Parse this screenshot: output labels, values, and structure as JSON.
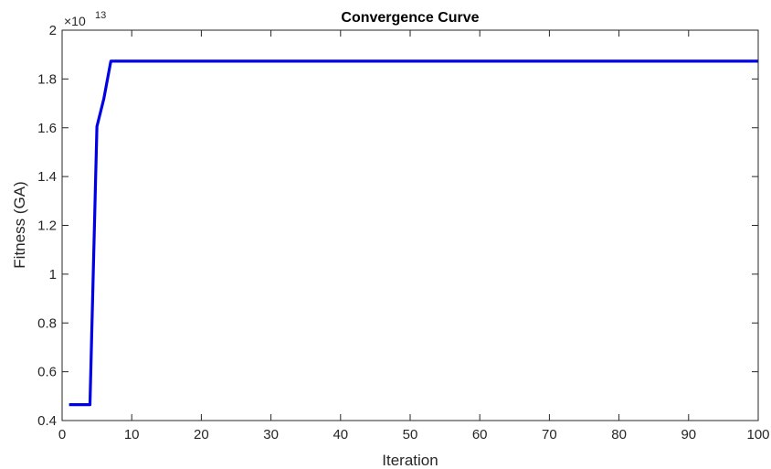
{
  "chart_data": {
    "type": "line",
    "title": "Convergence Curve",
    "xlabel": "Iteration",
    "ylabel": "Fitness (GA)",
    "y_multiplier_base": "×10",
    "y_multiplier_exponent": "13",
    "xlim": [
      0,
      100
    ],
    "ylim": [
      0.4,
      2
    ],
    "x_ticks": [
      0,
      10,
      20,
      30,
      40,
      50,
      60,
      70,
      80,
      90,
      100
    ],
    "x_tick_labels": [
      "0",
      "10",
      "20",
      "30",
      "40",
      "50",
      "60",
      "70",
      "80",
      "90",
      "100"
    ],
    "y_ticks": [
      0.4,
      0.6,
      0.8,
      1.0,
      1.2,
      1.4,
      1.6,
      1.8,
      2.0
    ],
    "y_tick_labels": [
      "0.4",
      "0.6",
      "0.8",
      "1",
      "1.2",
      "1.4",
      "1.6",
      "1.8",
      "2"
    ],
    "grid": false,
    "box": true,
    "series": [
      {
        "color": "#0000e6",
        "x": [
          1,
          2,
          3,
          4,
          5,
          6,
          7,
          8,
          100
        ],
        "y": [
          0.465,
          0.465,
          0.465,
          0.465,
          1.605,
          1.72,
          1.873,
          1.873,
          1.873
        ]
      }
    ]
  }
}
